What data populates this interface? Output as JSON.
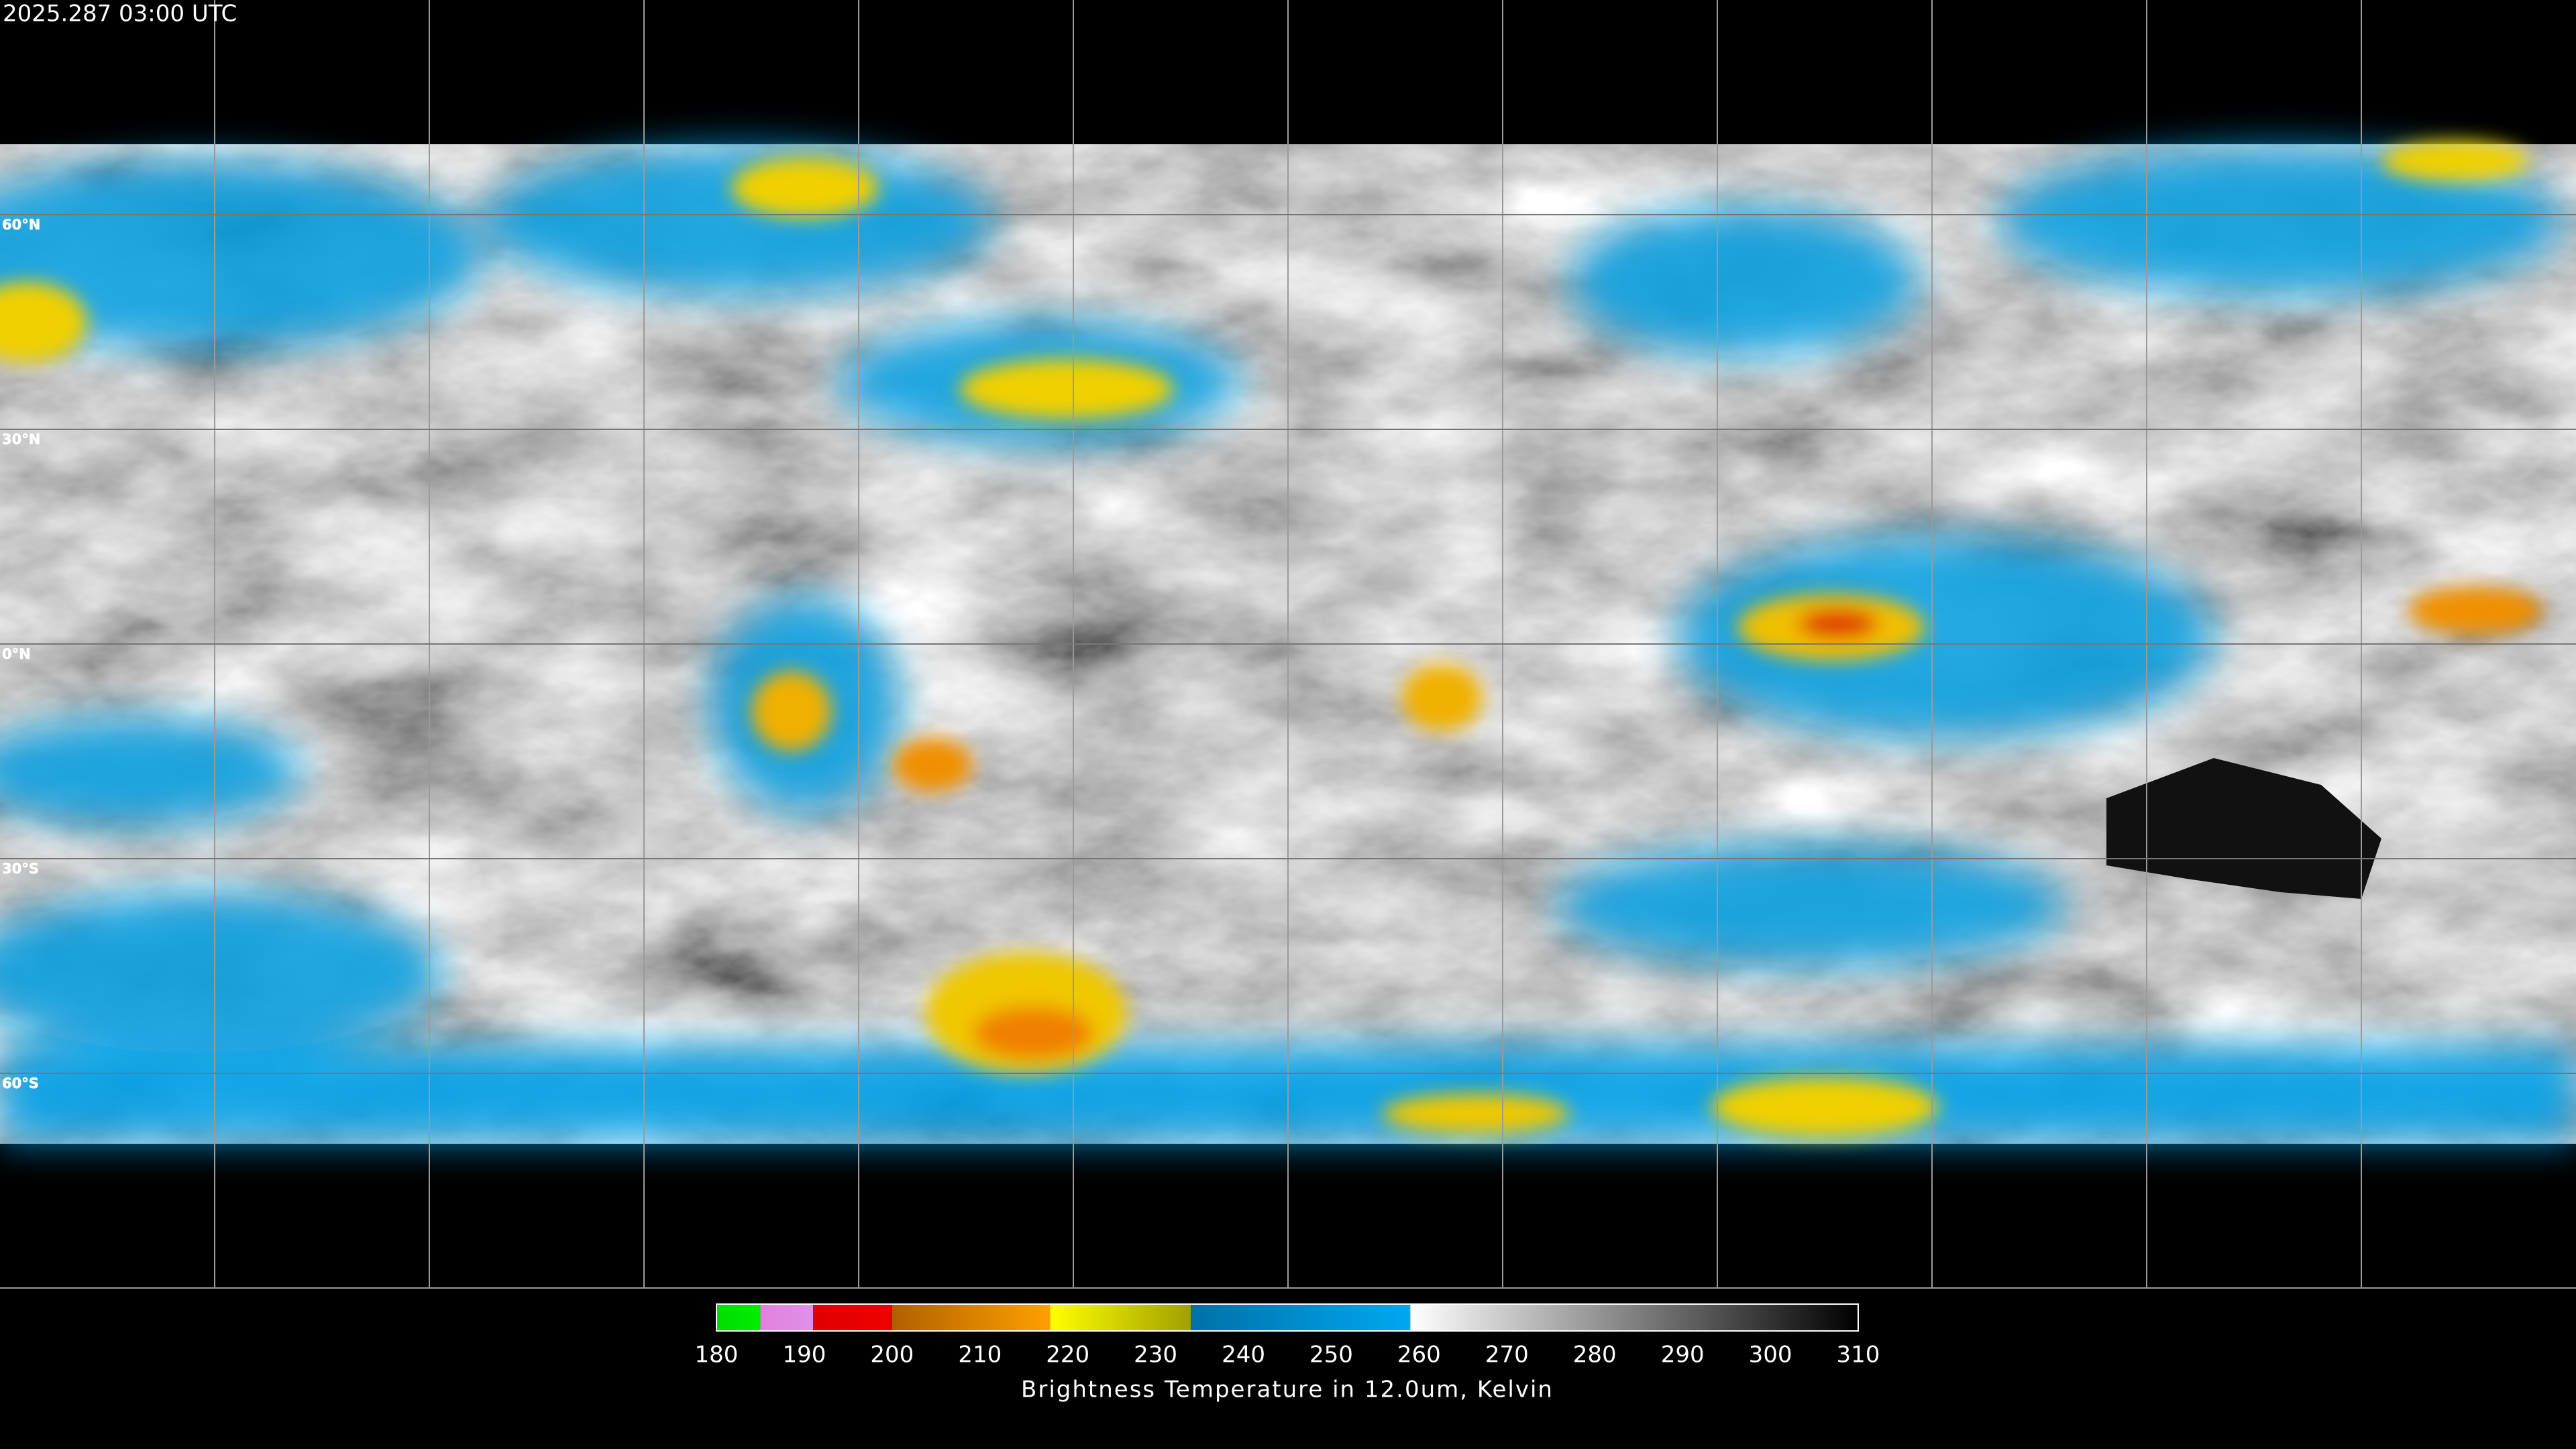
{
  "header": {
    "timestamp": "2025.287 03:00 UTC"
  },
  "map": {
    "lat_lines": [
      {
        "value": 60,
        "label": "60°N"
      },
      {
        "value": 30,
        "label": "30°N"
      },
      {
        "value": 0,
        "label": "0°N"
      },
      {
        "value": -30,
        "label": "30°S"
      },
      {
        "value": -60,
        "label": "60°S"
      }
    ]
  },
  "colorbar": {
    "title": "Brightness Temperature in 12.0um, Kelvin",
    "range": [
      180,
      310
    ],
    "ticks": [
      180,
      190,
      200,
      210,
      220,
      230,
      240,
      250,
      260,
      270,
      280,
      290,
      300,
      310
    ],
    "segments": [
      {
        "from": 180,
        "to": 185,
        "colors": [
          "#00dd00",
          "#00ee00"
        ]
      },
      {
        "from": 185,
        "to": 191,
        "colors": [
          "#e080e0",
          "#e090e8"
        ]
      },
      {
        "from": 191,
        "to": 200,
        "colors": [
          "#e00000",
          "#ee0000"
        ]
      },
      {
        "from": 200,
        "to": 218,
        "colors": [
          "#b06000",
          "#ffa000"
        ]
      },
      {
        "from": 218,
        "to": 234,
        "colors": [
          "#ffff00",
          "#a0a000"
        ]
      },
      {
        "from": 234,
        "to": 259,
        "colors": [
          "#0070a8",
          "#00a8f0"
        ]
      },
      {
        "from": 259,
        "to": 310,
        "colors": [
          "#ffffff",
          "#000000"
        ]
      }
    ]
  }
}
